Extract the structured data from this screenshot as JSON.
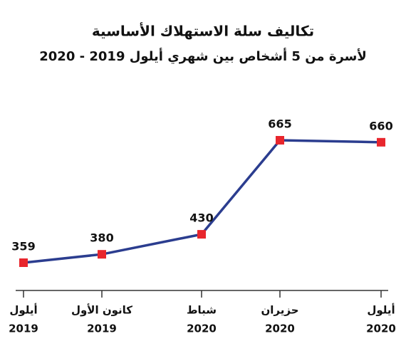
{
  "chart_data": {
    "type": "line",
    "title": "تكاليف سلة الاستهلاك الأساسية",
    "subtitle": "لأسرة من 5 أشخاص بين شهري أيلول 2019 - 2020",
    "categories": [
      [
        "أيلول",
        "2019"
      ],
      [
        "كانون الأول",
        "2019"
      ],
      [
        "شباط",
        "2020"
      ],
      [
        "حزيران",
        "2020"
      ],
      [
        "أيلول",
        "2020"
      ]
    ],
    "values": [
      359,
      380,
      430,
      665,
      660
    ],
    "color": "#2b3d8f",
    "marker_color": "#e8262d"
  }
}
